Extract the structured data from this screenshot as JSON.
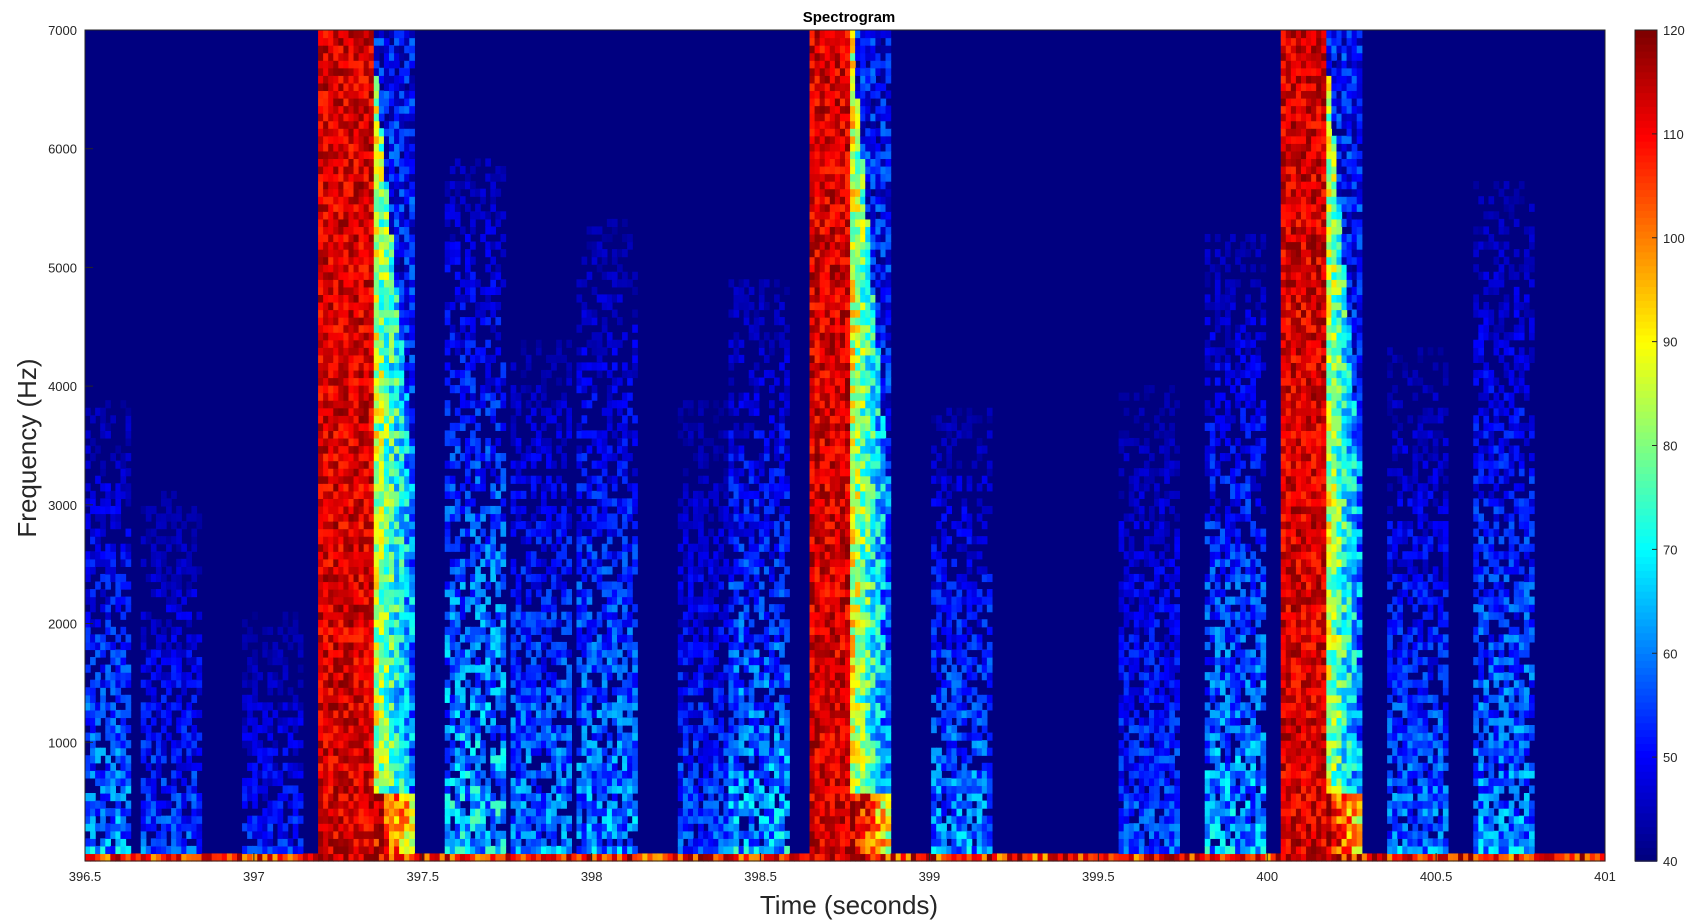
{
  "chart_data": {
    "type": "heatmap",
    "title": "Spectrogram",
    "xlabel": "Time (seconds)",
    "ylabel": "Frequency (Hz)",
    "xlim": [
      396.5,
      401
    ],
    "ylim": [
      0,
      7000
    ],
    "x_ticks": [
      "396.5",
      "397",
      "397.5",
      "398",
      "398.5",
      "399",
      "399.5",
      "400",
      "400.5",
      "401"
    ],
    "y_ticks": [
      "1000",
      "2000",
      "3000",
      "4000",
      "5000",
      "6000",
      "7000"
    ],
    "colormap": "jet",
    "colorbar": {
      "range": [
        40,
        120
      ],
      "ticks": [
        "40",
        "50",
        "60",
        "70",
        "80",
        "90",
        "100",
        "110",
        "120"
      ]
    },
    "background_level": 40,
    "events": [
      {
        "t_start": 397.19,
        "t_end": 397.48,
        "level": 120,
        "description": "broadband burst with rising-energy tail"
      },
      {
        "t_start": 398.64,
        "t_end": 398.88,
        "level": 120,
        "description": "broadband burst"
      },
      {
        "t_start": 400.04,
        "t_end": 400.28,
        "level": 120,
        "description": "broadband burst"
      }
    ],
    "activity_bands": [
      {
        "t": 396.55,
        "max_freq": 3900,
        "level": 60
      },
      {
        "t": 396.75,
        "max_freq": 3100,
        "level": 55
      },
      {
        "t": 397.05,
        "max_freq": 2100,
        "level": 52
      },
      {
        "t": 397.65,
        "max_freq": 5900,
        "level": 65
      },
      {
        "t": 397.85,
        "max_freq": 4400,
        "level": 60
      },
      {
        "t": 398.05,
        "max_freq": 5400,
        "level": 60
      },
      {
        "t": 398.35,
        "max_freq": 3900,
        "level": 55
      },
      {
        "t": 398.5,
        "max_freq": 4900,
        "level": 62
      },
      {
        "t": 399.1,
        "max_freq": 3800,
        "level": 60
      },
      {
        "t": 399.65,
        "max_freq": 4000,
        "level": 55
      },
      {
        "t": 399.9,
        "max_freq": 5300,
        "level": 62
      },
      {
        "t": 400.45,
        "max_freq": 4300,
        "level": 58
      },
      {
        "t": 400.7,
        "max_freq": 5700,
        "level": 60
      }
    ]
  }
}
